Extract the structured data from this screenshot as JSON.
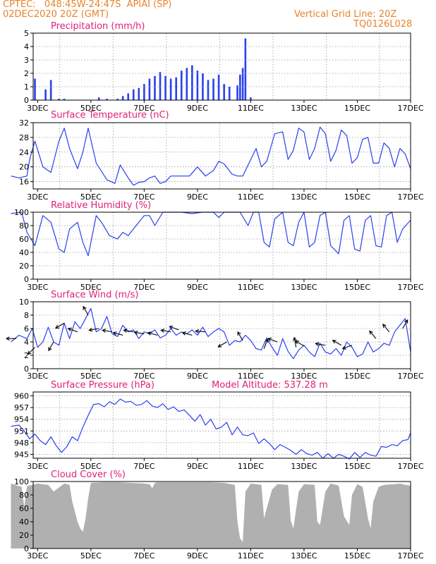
{
  "header": {
    "line1": "CPTEC:   048:45W-24:47S  APIAI (SP)",
    "line2": "02DEC2020 20Z (GMT)",
    "right1": "Vertical Grid Line: 20Z",
    "right2": "TQ0126L028"
  },
  "colors": {
    "header": "#e8832a",
    "panel_title": "#e0207a",
    "series": "#2a3ff0",
    "cloud": "#b0b0b0",
    "grid": "#9a9a9a",
    "wind_arrow": "#000000"
  },
  "x_axis": {
    "start_label": "02DEC 20Z",
    "end_label": "17DEC 00Z",
    "tick_labels": [
      "3DEC",
      "5DEC",
      "7DEC",
      "9DEC",
      "11DEC",
      "13DEC",
      "15DEC",
      "17DEC"
    ],
    "tick_days": [
      3,
      5,
      7,
      9,
      11,
      13,
      15,
      17
    ]
  },
  "chart_data": [
    {
      "id": "precip",
      "type": "bar",
      "title": "Precipitation (mm/h)",
      "ylim": [
        0,
        5
      ],
      "yticks": [
        0,
        1,
        2,
        3,
        4,
        5
      ],
      "grid": true,
      "x_day": [
        2.9,
        3.3,
        3.5,
        3.8,
        4.0,
        5.3,
        5.6,
        6.0,
        6.2,
        6.4,
        6.6,
        6.8,
        7.0,
        7.2,
        7.4,
        7.6,
        7.8,
        8.0,
        8.2,
        8.4,
        8.6,
        8.8,
        9.0,
        9.2,
        9.4,
        9.6,
        9.8,
        10.0,
        10.2,
        10.5,
        10.6,
        10.7,
        10.8,
        11.0
      ],
      "values": [
        1.6,
        0.8,
        1.5,
        0.1,
        0.1,
        0.2,
        0.1,
        0.1,
        0.3,
        0.5,
        0.8,
        0.9,
        1.2,
        1.6,
        1.8,
        2.1,
        1.8,
        1.6,
        1.7,
        2.2,
        2.4,
        2.6,
        2.2,
        2.0,
        1.5,
        1.6,
        1.9,
        1.2,
        1.0,
        1.1,
        1.9,
        2.4,
        4.6,
        0.2
      ]
    },
    {
      "id": "temp",
      "type": "line",
      "title": "Surface Temperature (nC)",
      "ylim": [
        14,
        32
      ],
      "yticks": [
        16,
        20,
        24,
        28,
        32
      ],
      "grid": true,
      "x_day": [
        2.0,
        2.3,
        2.6,
        2.7,
        2.9,
        3.2,
        3.5,
        3.8,
        4.0,
        4.2,
        4.5,
        4.7,
        4.9,
        5.2,
        5.6,
        5.9,
        6.1,
        6.4,
        6.6,
        6.8,
        7.0,
        7.2,
        7.4,
        7.6,
        7.8,
        8.0,
        8.3,
        8.7,
        9.0,
        9.3,
        9.6,
        9.8,
        10.0,
        10.3,
        10.5,
        10.7,
        10.9,
        11.2,
        11.4,
        11.6,
        11.9,
        12.2,
        12.4,
        12.6,
        12.8,
        13.0,
        13.2,
        13.4,
        13.6,
        13.8,
        14.0,
        14.2,
        14.4,
        14.6,
        14.8,
        15.0,
        15.2,
        15.4,
        15.6,
        15.8,
        16.0,
        16.2,
        16.4,
        16.6,
        16.8,
        17.0
      ],
      "values": [
        17.5,
        17.0,
        17.5,
        22.0,
        27.0,
        20.0,
        18.5,
        27.0,
        30.5,
        25.0,
        19.5,
        24.0,
        30.5,
        21.0,
        16.5,
        15.5,
        20.5,
        17.0,
        15.0,
        15.8,
        16.0,
        17.0,
        17.5,
        15.5,
        16.0,
        17.5,
        17.5,
        17.5,
        20.0,
        17.5,
        19.0,
        21.5,
        20.8,
        18.0,
        17.5,
        17.5,
        20.5,
        25.0,
        20.0,
        21.5,
        29.0,
        29.5,
        22.0,
        24.5,
        30.5,
        29.5,
        22.0,
        25.0,
        30.8,
        29.0,
        21.5,
        24.5,
        30.0,
        28.5,
        21.0,
        22.5,
        27.5,
        28.0,
        21.0,
        21.0,
        26.5,
        25.0,
        20.0,
        25.0,
        23.5,
        19.5
      ]
    },
    {
      "id": "rh",
      "type": "line",
      "title": "Relative Humidity (%)",
      "ylim": [
        0,
        100
      ],
      "yticks": [
        0,
        20,
        40,
        60,
        80,
        100
      ],
      "grid": true,
      "x_day": [
        2.0,
        2.4,
        2.6,
        2.9,
        3.2,
        3.5,
        3.8,
        4.0,
        4.2,
        4.5,
        4.7,
        4.9,
        5.2,
        5.4,
        5.7,
        6.0,
        6.2,
        6.4,
        6.6,
        6.8,
        7.0,
        7.2,
        7.4,
        7.7,
        8.0,
        8.4,
        8.8,
        9.2,
        9.6,
        9.8,
        10.0,
        10.3,
        10.6,
        10.9,
        11.1,
        11.3,
        11.5,
        11.7,
        11.9,
        12.2,
        12.4,
        12.6,
        12.8,
        13.0,
        13.2,
        13.4,
        13.6,
        13.8,
        14.0,
        14.3,
        14.5,
        14.7,
        14.9,
        15.1,
        15.3,
        15.5,
        15.7,
        15.9,
        16.1,
        16.3,
        16.5,
        16.7,
        17.0
      ],
      "values": [
        98,
        100,
        70,
        50,
        95,
        85,
        45,
        40,
        75,
        85,
        55,
        35,
        95,
        85,
        65,
        60,
        70,
        65,
        75,
        85,
        95,
        95,
        80,
        100,
        100,
        100,
        98,
        100,
        100,
        92,
        100,
        100,
        100,
        80,
        100,
        100,
        55,
        48,
        90,
        100,
        55,
        50,
        85,
        100,
        48,
        55,
        95,
        100,
        50,
        38,
        88,
        95,
        45,
        42,
        88,
        95,
        50,
        48,
        95,
        100,
        55,
        75,
        88
      ]
    },
    {
      "id": "wind",
      "type": "line",
      "title": "Surface Wind (m/s)",
      "ylim": [
        0,
        10
      ],
      "yticks": [
        0,
        2,
        4,
        6,
        8,
        10
      ],
      "grid": true,
      "x_day": [
        2.0,
        2.3,
        2.6,
        2.8,
        3.0,
        3.2,
        3.4,
        3.6,
        3.8,
        4.0,
        4.2,
        4.4,
        4.6,
        4.8,
        5.0,
        5.2,
        5.4,
        5.6,
        5.8,
        6.0,
        6.2,
        6.4,
        6.6,
        6.8,
        7.0,
        7.2,
        7.4,
        7.6,
        7.8,
        8.0,
        8.2,
        8.4,
        8.6,
        8.8,
        9.0,
        9.2,
        9.4,
        9.6,
        9.8,
        10.0,
        10.2,
        10.4,
        10.6,
        10.8,
        11.0,
        11.2,
        11.4,
        11.6,
        11.8,
        12.0,
        12.2,
        12.4,
        12.6,
        12.8,
        13.0,
        13.2,
        13.4,
        13.6,
        13.8,
        14.0,
        14.2,
        14.4,
        14.6,
        14.8,
        15.0,
        15.2,
        15.4,
        15.6,
        15.8,
        16.0,
        16.2,
        16.4,
        16.6,
        16.8,
        17.0
      ],
      "values": [
        4.0,
        5.0,
        4.5,
        6.0,
        3.2,
        4.0,
        6.2,
        4.0,
        3.5,
        6.8,
        4.5,
        7.0,
        6.0,
        7.5,
        9.0,
        5.5,
        6.0,
        7.8,
        5.2,
        4.8,
        6.5,
        5.5,
        5.8,
        4.5,
        5.5,
        5.2,
        5.8,
        4.6,
        5.0,
        6.0,
        5.0,
        5.5,
        5.2,
        5.8,
        5.0,
        6.2,
        4.8,
        5.5,
        6.0,
        5.5,
        3.5,
        4.2,
        4.0,
        5.0,
        4.2,
        3.0,
        2.8,
        4.6,
        3.2,
        2.0,
        4.5,
        2.6,
        1.5,
        2.8,
        3.5,
        2.5,
        1.8,
        3.8,
        2.5,
        2.2,
        3.0,
        2.0,
        4.0,
        3.2,
        1.8,
        2.2,
        4.0,
        2.5,
        3.0,
        3.8,
        3.5,
        5.5,
        6.5,
        7.5,
        2.5
      ]
    },
    {
      "id": "pressure",
      "type": "line",
      "title": "Surface Pressure (hPa)",
      "annotation": "Model Altitude: 537.28 m",
      "ylim": [
        944,
        961
      ],
      "yticks": [
        945,
        948,
        951,
        954,
        957,
        960
      ],
      "grid": true,
      "x_day": [
        2.0,
        2.3,
        2.5,
        2.7,
        2.9,
        3.1,
        3.3,
        3.5,
        3.7,
        3.9,
        4.1,
        4.3,
        4.5,
        4.7,
        4.9,
        5.1,
        5.3,
        5.5,
        5.7,
        5.9,
        6.1,
        6.3,
        6.5,
        6.7,
        6.9,
        7.1,
        7.3,
        7.5,
        7.7,
        7.9,
        8.1,
        8.3,
        8.5,
        8.7,
        8.9,
        9.1,
        9.3,
        9.5,
        9.7,
        9.9,
        10.1,
        10.3,
        10.5,
        10.7,
        10.9,
        11.1,
        11.3,
        11.5,
        11.7,
        11.9,
        12.1,
        12.3,
        12.5,
        12.7,
        12.9,
        13.1,
        13.3,
        13.5,
        13.7,
        13.9,
        14.1,
        14.3,
        14.5,
        14.7,
        14.9,
        15.1,
        15.3,
        15.5,
        15.7,
        15.9,
        16.1,
        16.3,
        16.5,
        16.7,
        16.9,
        17.0
      ],
      "values": [
        952.2,
        952.5,
        951.0,
        949.0,
        950.2,
        948.5,
        947.5,
        949.5,
        947.2,
        945.5,
        947.0,
        949.5,
        948.5,
        952.0,
        955.0,
        957.8,
        958.0,
        957.2,
        958.5,
        957.8,
        959.2,
        958.4,
        958.6,
        957.6,
        957.8,
        958.8,
        957.4,
        957.0,
        958.0,
        956.5,
        957.2,
        956.0,
        956.4,
        955.0,
        953.5,
        955.2,
        952.5,
        954.0,
        951.5,
        952.0,
        953.2,
        950.0,
        952.0,
        950.0,
        949.8,
        950.5,
        947.8,
        949.0,
        947.8,
        946.2,
        947.5,
        946.8,
        946.0,
        945.0,
        946.2,
        945.2,
        944.8,
        945.5,
        944.0,
        945.2,
        944.0,
        945.0,
        944.5,
        943.8,
        945.5,
        944.2,
        945.5,
        944.8,
        944.5,
        947.0,
        946.8,
        947.5,
        947.2,
        948.5,
        948.8,
        950.5
      ]
    },
    {
      "id": "cloud",
      "type": "area",
      "title": "Cloud Cover (%)",
      "ylim": [
        0,
        100
      ],
      "yticks": [
        0,
        20,
        40,
        60,
        80,
        100
      ],
      "grid": false,
      "x_day": [
        2.0,
        2.4,
        2.5,
        2.6,
        3.0,
        3.4,
        3.6,
        4.0,
        4.2,
        4.3,
        4.5,
        4.6,
        4.7,
        4.8,
        4.9,
        5.0,
        5.5,
        6.0,
        6.5,
        7.0,
        7.2,
        7.3,
        7.4,
        7.5,
        8.0,
        8.5,
        9.0,
        9.5,
        10.0,
        10.4,
        10.5,
        10.6,
        10.7,
        10.8,
        11.0,
        11.4,
        11.5,
        11.6,
        11.8,
        12.0,
        12.4,
        12.5,
        12.6,
        12.8,
        13.0,
        13.4,
        13.5,
        13.6,
        13.8,
        14.0,
        14.3,
        14.5,
        14.7,
        14.8,
        15.0,
        15.2,
        15.4,
        15.5,
        15.6,
        15.8,
        16.0,
        16.4,
        16.6,
        16.8,
        17.0
      ],
      "values": [
        97,
        92,
        62,
        93,
        97,
        95,
        85,
        97,
        95,
        70,
        40,
        30,
        25,
        45,
        75,
        98,
        99,
        99,
        98,
        97,
        96,
        90,
        98,
        99,
        99,
        99,
        99,
        99,
        98,
        95,
        40,
        15,
        10,
        85,
        97,
        95,
        45,
        60,
        88,
        96,
        95,
        42,
        30,
        85,
        96,
        95,
        40,
        35,
        85,
        97,
        94,
        48,
        35,
        80,
        96,
        92,
        45,
        30,
        70,
        92,
        95,
        96,
        97,
        95,
        94
      ]
    }
  ],
  "wind_barbs": [
    {
      "day": 2.2,
      "speed": 4.5,
      "dir_deg": 180
    },
    {
      "day": 2.9,
      "speed": 3.2,
      "dir_deg": 225
    },
    {
      "day": 3.6,
      "speed": 4.0,
      "dir_deg": 240
    },
    {
      "day": 4.0,
      "speed": 6.8,
      "dir_deg": 210
    },
    {
      "day": 4.5,
      "speed": 5.5,
      "dir_deg": 160
    },
    {
      "day": 4.9,
      "speed": 8.0,
      "dir_deg": 120
    },
    {
      "day": 5.3,
      "speed": 6.0,
      "dir_deg": 190
    },
    {
      "day": 5.8,
      "speed": 5.5,
      "dir_deg": 170
    },
    {
      "day": 6.2,
      "speed": 5.0,
      "dir_deg": 165
    },
    {
      "day": 6.6,
      "speed": 5.5,
      "dir_deg": 170
    },
    {
      "day": 7.0,
      "speed": 5.2,
      "dir_deg": 170
    },
    {
      "day": 7.5,
      "speed": 5.0,
      "dir_deg": 165
    },
    {
      "day": 8.0,
      "speed": 5.5,
      "dir_deg": 170
    },
    {
      "day": 8.3,
      "speed": 5.8,
      "dir_deg": 160
    },
    {
      "day": 8.8,
      "speed": 5.0,
      "dir_deg": 165
    },
    {
      "day": 9.3,
      "speed": 5.5,
      "dir_deg": 175
    },
    {
      "day": 10.1,
      "speed": 4.0,
      "dir_deg": 210
    },
    {
      "day": 10.7,
      "speed": 4.2,
      "dir_deg": 120
    },
    {
      "day": 11.5,
      "speed": 3.0,
      "dir_deg": 70
    },
    {
      "day": 12.0,
      "speed": 4.0,
      "dir_deg": 160
    },
    {
      "day": 12.7,
      "speed": 3.2,
      "dir_deg": 100
    },
    {
      "day": 13.0,
      "speed": 3.4,
      "dir_deg": 150
    },
    {
      "day": 13.8,
      "speed": 3.5,
      "dir_deg": 170
    },
    {
      "day": 14.4,
      "speed": 3.5,
      "dir_deg": 150
    },
    {
      "day": 14.8,
      "speed": 3.5,
      "dir_deg": 200
    },
    {
      "day": 15.7,
      "speed": 4.5,
      "dir_deg": 130
    },
    {
      "day": 16.2,
      "speed": 5.5,
      "dir_deg": 130
    },
    {
      "day": 16.7,
      "speed": 6.0,
      "dir_deg": 60
    }
  ]
}
